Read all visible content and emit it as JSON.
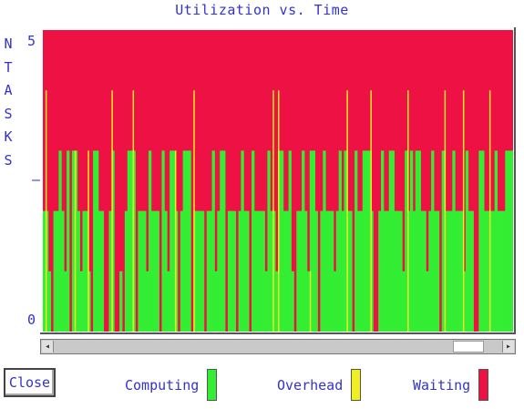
{
  "window": {
    "title": "Utilization vs. Time"
  },
  "close_label": "Close",
  "y_axis_letters": [
    "N",
    "T",
    "A",
    "S",
    "K",
    "S"
  ],
  "legend": [
    {
      "label": "Computing",
      "color": "#33ee33"
    },
    {
      "label": "Overhead",
      "color": "#eeee22"
    },
    {
      "label": "Waiting",
      "color": "#ee1144"
    }
  ],
  "chart_data": {
    "type": "area",
    "title": "Utilization vs. Time",
    "ylabel": "NTASKS",
    "ylim": [
      0,
      5
    ],
    "yticks": [
      {
        "value": 5,
        "label": "5"
      },
      {
        "value": 2.5,
        "label": "–"
      },
      {
        "value": 0,
        "label": "0"
      }
    ],
    "series": [
      {
        "name": "Computing",
        "color": "#33ee33"
      },
      {
        "name": "Overhead",
        "color": "#eeee22"
      },
      {
        "name": "Waiting",
        "color": "#ee1144"
      }
    ],
    "computing_levels": [
      2,
      2,
      1,
      0,
      2,
      2,
      3,
      2,
      1,
      3,
      0,
      3,
      3,
      2,
      1,
      2,
      2,
      1,
      0,
      3,
      3,
      2,
      2,
      0,
      0,
      2,
      3,
      0,
      0,
      1,
      0,
      2,
      3,
      3,
      3,
      0,
      2,
      2,
      2,
      1,
      3,
      2,
      2,
      2,
      0,
      3,
      2,
      1,
      3,
      3,
      2,
      0,
      2,
      3,
      3,
      3,
      0,
      2,
      2,
      2,
      2,
      0,
      2,
      2,
      3,
      1,
      2,
      3,
      3,
      0,
      2,
      2,
      2,
      0,
      2,
      3,
      2,
      2,
      0,
      3,
      2,
      2,
      2,
      2,
      1,
      3,
      2,
      2,
      1,
      3,
      3,
      2,
      2,
      3,
      1,
      0,
      2,
      2,
      3,
      2,
      1,
      3,
      3,
      2,
      0,
      2,
      3,
      2,
      2,
      2,
      1,
      2,
      3,
      2,
      3,
      2,
      2,
      0,
      3,
      2,
      2,
      3,
      3,
      3,
      2,
      0,
      0,
      2,
      3,
      2,
      2,
      3,
      3,
      2,
      2,
      2,
      1,
      3,
      2,
      3,
      2,
      3,
      3,
      2,
      2,
      1,
      2,
      3,
      2,
      2,
      0,
      3,
      2,
      2,
      2,
      3,
      2,
      2,
      2,
      1,
      3,
      2,
      2,
      0,
      0,
      3,
      3,
      2,
      2,
      2,
      2,
      3,
      2,
      2,
      2,
      3,
      3,
      3
    ],
    "overhead_spikes": [
      {
        "t": 1,
        "top": 4
      },
      {
        "t": 12,
        "top": 3
      },
      {
        "t": 17,
        "top": 3
      },
      {
        "t": 26,
        "top": 4
      },
      {
        "t": 34,
        "top": 4
      },
      {
        "t": 50,
        "top": 3
      },
      {
        "t": 57,
        "top": 4
      },
      {
        "t": 87,
        "top": 4
      },
      {
        "t": 89,
        "top": 4
      },
      {
        "t": 101,
        "top": 1
      },
      {
        "t": 115,
        "top": 4
      },
      {
        "t": 124,
        "top": 4
      },
      {
        "t": 138,
        "top": 4
      },
      {
        "t": 152,
        "top": 4
      },
      {
        "t": 159,
        "top": 4
      },
      {
        "t": 169,
        "top": 4
      }
    ]
  }
}
